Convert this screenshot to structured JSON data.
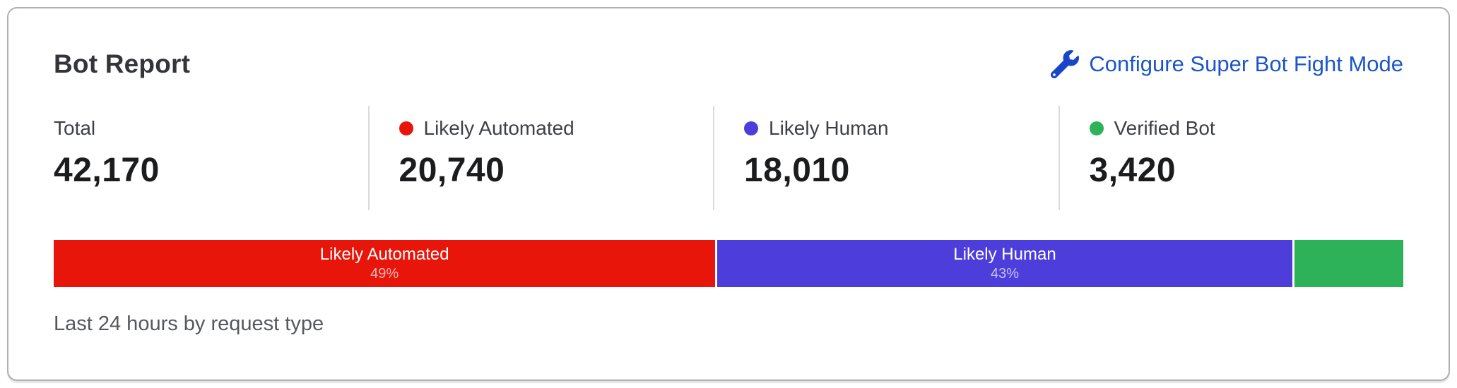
{
  "card": {
    "title": "Bot Report",
    "action_link": {
      "label": "Configure Super Bot Fight Mode",
      "icon": "wrench-icon",
      "color": "#1b55c9"
    },
    "caption": "Last 24 hours by request type"
  },
  "stats": [
    {
      "label": "Total",
      "value": "42,170",
      "dot_color": null
    },
    {
      "label": "Likely Automated",
      "value": "20,740",
      "dot_color": "#e8150b"
    },
    {
      "label": "Likely Human",
      "value": "18,010",
      "dot_color": "#4d3ddb"
    },
    {
      "label": "Verified Bot",
      "value": "3,420",
      "dot_color": "#2eb259"
    }
  ],
  "chart_data": {
    "type": "bar",
    "subtype": "horizontal-stacked",
    "caption": "Last 24 hours by request type",
    "total": 42170,
    "segments": [
      {
        "label": "Likely Automated",
        "value": 20740,
        "percent": 49.18,
        "percent_label": "49%",
        "color": "#e8150b",
        "show_label": true
      },
      {
        "label": "Likely Human",
        "value": 18010,
        "percent": 42.71,
        "percent_label": "43%",
        "color": "#4d3ddb",
        "show_label": true
      },
      {
        "label": "Verified Bot",
        "value": 3420,
        "percent": 8.11,
        "percent_label": "",
        "color": "#2eb259",
        "show_label": false
      }
    ]
  },
  "colors": {
    "link_blue": "#1b55c9",
    "red": "#e8150b",
    "purple": "#4d3ddb",
    "green": "#2eb259",
    "divider": "#dadbdd",
    "card_border": "#aeb0b3"
  }
}
